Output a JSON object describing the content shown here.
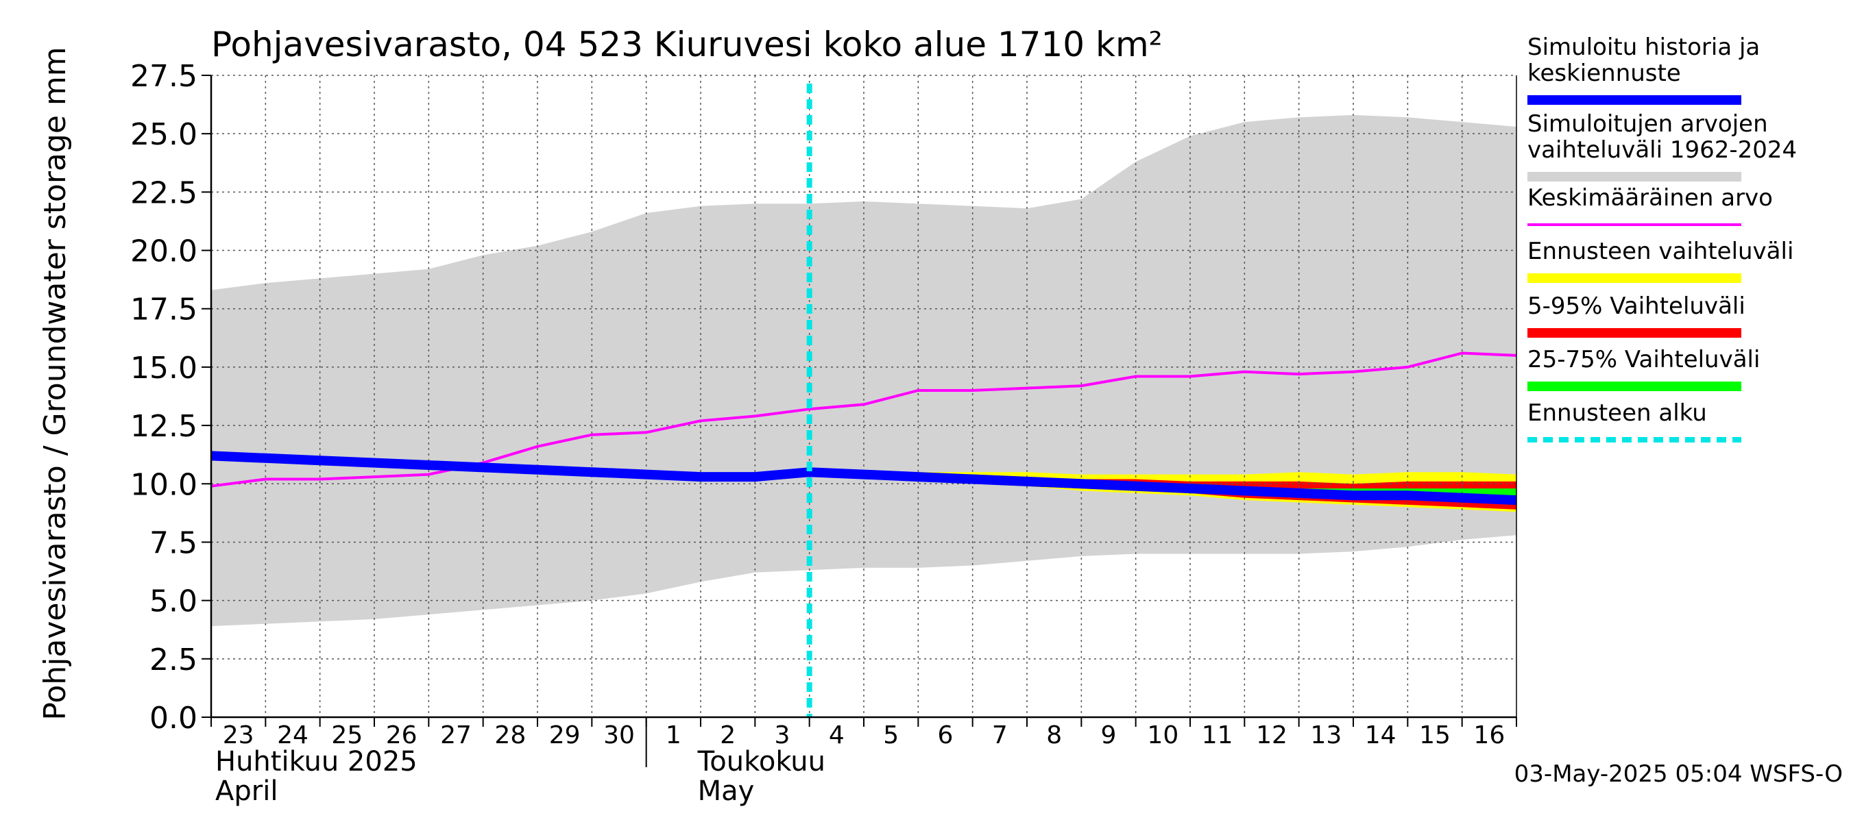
{
  "chart_data": {
    "type": "area",
    "title": "Pohjavesivarasto, 04 523 Kiuruvesi koko alue 1710 km²",
    "ylabel": "Pohjavesivarasto / Groundwater storage   mm",
    "ylim": [
      0,
      27.5
    ],
    "yticks": [
      "0.0",
      "2.5",
      "5.0",
      "7.5",
      "10.0",
      "12.5",
      "15.0",
      "17.5",
      "20.0",
      "22.5",
      "25.0",
      "27.5"
    ],
    "x_start": "2025-04-22",
    "x_end": "2025-05-16",
    "xtick_days": [
      "23",
      "24",
      "25",
      "26",
      "27",
      "28",
      "29",
      "30",
      "1",
      "2",
      "3",
      "4",
      "5",
      "6",
      "7",
      "8",
      "9",
      "10",
      "11",
      "12",
      "13",
      "14",
      "15",
      "16"
    ],
    "month_labels": [
      {
        "fi": "Huhtikuu  2025",
        "en": "April"
      },
      {
        "fi": "Toukokuu",
        "en": "May"
      }
    ],
    "forecast_start": "2025-05-03",
    "footer": "03-May-2025 05:04 WSFS-O",
    "grid": true,
    "legend_position": "right",
    "colors": {
      "history": "#0000ff",
      "sim_range": "#d3d3d3",
      "mean": "#ff00ff",
      "forecast_range": "#ffff00",
      "p5_95": "#ff0000",
      "p25_75": "#00ff00",
      "forecast_start": "#00e5e5"
    },
    "legend": [
      {
        "lines": [
          "Simuloitu historia ja",
          "keskiennuste"
        ],
        "color": "#0000ff",
        "style": "thick"
      },
      {
        "lines": [
          "Simuloitujen arvojen",
          "vaihteluväli 1962-2024"
        ],
        "color": "#d3d3d3",
        "style": "thick"
      },
      {
        "lines": [
          "Keskimääräinen arvo"
        ],
        "color": "#ff00ff",
        "style": "thin"
      },
      {
        "lines": [
          "Ennusteen vaihteluväli"
        ],
        "color": "#ffff00",
        "style": "thick"
      },
      {
        "lines": [
          "5-95% Vaihteluväli"
        ],
        "color": "#ff0000",
        "style": "thick"
      },
      {
        "lines": [
          "25-75% Vaihteluväli"
        ],
        "color": "#00ff00",
        "style": "thick"
      },
      {
        "lines": [
          "Ennusteen alku"
        ],
        "color": "#00e5e5",
        "style": "dashed"
      }
    ],
    "dates": [
      "2025-04-22",
      "2025-04-23",
      "2025-04-24",
      "2025-04-25",
      "2025-04-26",
      "2025-04-27",
      "2025-04-28",
      "2025-04-29",
      "2025-04-30",
      "2025-05-01",
      "2025-05-02",
      "2025-05-03",
      "2025-05-04",
      "2025-05-05",
      "2025-05-06",
      "2025-05-07",
      "2025-05-08",
      "2025-05-09",
      "2025-05-10",
      "2025-05-11",
      "2025-05-12",
      "2025-05-13",
      "2025-05-14",
      "2025-05-15",
      "2025-05-16"
    ],
    "sim_range_max": [
      18.3,
      18.6,
      18.8,
      19.0,
      19.2,
      19.8,
      20.2,
      20.8,
      21.6,
      21.9,
      22.0,
      22.0,
      22.1,
      22.0,
      21.9,
      21.8,
      22.2,
      23.8,
      24.9,
      25.5,
      25.7,
      25.8,
      25.7,
      25.5,
      25.3
    ],
    "sim_range_min": [
      3.9,
      4.0,
      4.1,
      4.2,
      4.4,
      4.6,
      4.8,
      5.0,
      5.3,
      5.8,
      6.2,
      6.3,
      6.4,
      6.4,
      6.5,
      6.7,
      6.9,
      7.0,
      7.0,
      7.0,
      7.0,
      7.1,
      7.3,
      7.6,
      7.8
    ],
    "mean": [
      9.9,
      10.2,
      10.2,
      10.3,
      10.4,
      10.9,
      11.6,
      12.1,
      12.2,
      12.7,
      12.9,
      13.2,
      13.4,
      14.0,
      14.0,
      14.1,
      14.2,
      14.6,
      14.6,
      14.8,
      14.7,
      14.8,
      15.0,
      15.6,
      15.5
    ],
    "history": [
      11.2,
      11.1,
      11.0,
      10.9,
      10.8,
      10.7,
      10.6,
      10.5,
      10.4,
      10.3,
      10.3,
      10.5
    ],
    "forecast_dates": [
      "2025-05-03",
      "2025-05-04",
      "2025-05-05",
      "2025-05-06",
      "2025-05-07",
      "2025-05-08",
      "2025-05-09",
      "2025-05-10",
      "2025-05-11",
      "2025-05-12",
      "2025-05-13",
      "2025-05-14",
      "2025-05-15",
      "2025-05-16"
    ],
    "forecast_max": [
      10.5,
      10.5,
      10.5,
      10.5,
      10.5,
      10.4,
      10.4,
      10.4,
      10.4,
      10.5,
      10.4,
      10.5,
      10.5,
      10.4
    ],
    "forecast_p95": [
      10.5,
      10.5,
      10.4,
      10.4,
      10.3,
      10.2,
      10.2,
      10.1,
      10.1,
      10.1,
      10.0,
      10.1,
      10.1,
      10.1
    ],
    "forecast_p75": [
      10.5,
      10.4,
      10.3,
      10.3,
      10.2,
      10.1,
      10.0,
      10.0,
      9.9,
      9.8,
      9.8,
      9.8,
      9.8,
      9.8
    ],
    "forecast_median": [
      10.5,
      10.4,
      10.3,
      10.2,
      10.1,
      10.0,
      9.9,
      9.8,
      9.7,
      9.6,
      9.5,
      9.5,
      9.4,
      9.3
    ],
    "forecast_p25": [
      10.5,
      10.3,
      10.2,
      10.1,
      10.0,
      9.9,
      9.8,
      9.7,
      9.6,
      9.5,
      9.4,
      9.3,
      9.3,
      9.2
    ],
    "forecast_p5": [
      10.5,
      10.3,
      10.2,
      10.0,
      9.9,
      9.8,
      9.7,
      9.6,
      9.4,
      9.3,
      9.2,
      9.1,
      9.0,
      8.9
    ],
    "forecast_min": [
      10.5,
      10.3,
      10.1,
      10.0,
      9.9,
      9.7,
      9.6,
      9.5,
      9.3,
      9.2,
      9.1,
      9.0,
      8.9,
      8.8
    ]
  }
}
